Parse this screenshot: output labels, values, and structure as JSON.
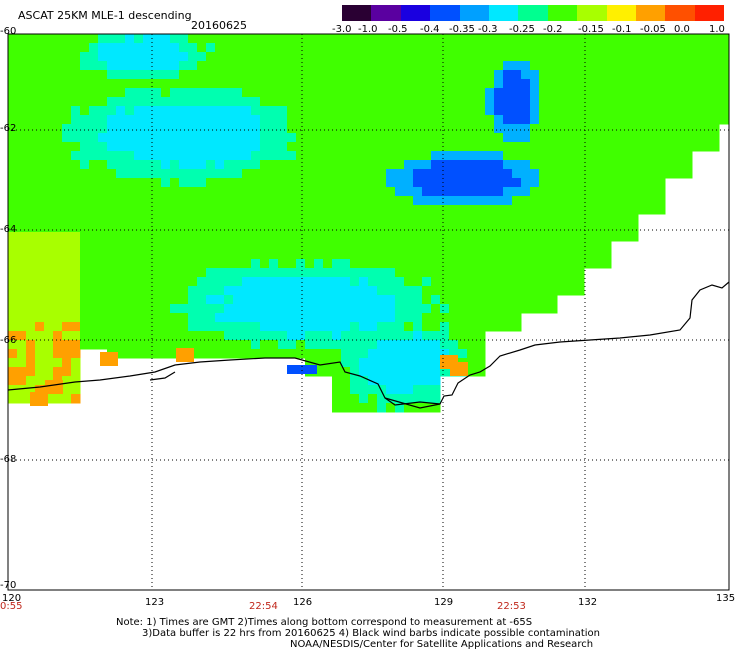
{
  "header": {
    "product": "ASCAT 25KM MLE-1 descending",
    "date": "20160625"
  },
  "colorbar": {
    "tick_labels": [
      "-3.0",
      "-1.0",
      "-0.5",
      "-0.4",
      "-0.35",
      "-0.3",
      "-0.25",
      "-0.2",
      "-0.15",
      "-0.1",
      "-0.05",
      "0.0",
      "1.0"
    ],
    "colors": [
      "#2a0033",
      "#5a00a0",
      "#1a00e0",
      "#0050ff",
      "#00a0ff",
      "#00e8ff",
      "#00ff90",
      "#40ff00",
      "#a8ff00",
      "#fff000",
      "#ffa000",
      "#ff5000",
      "#ff2000"
    ]
  },
  "axes": {
    "lat_labels": [
      "-60",
      "-62",
      "-64",
      "-66",
      "-68",
      "-70"
    ],
    "lon_labels": [
      "120",
      "123",
      "126",
      "129",
      "132",
      "135"
    ],
    "lat_values": [
      -60,
      -62,
      -64,
      -66,
      -68,
      -70
    ],
    "lon_values": [
      120,
      123,
      126,
      129,
      132,
      135
    ]
  },
  "times": [
    "0:55",
    "22:54",
    "22:53"
  ],
  "notes": {
    "line1": "Note: 1) Times are GMT 2)Times along bottom correspond to measurement at -65S",
    "line2": "3)Data buffer is 22 hrs from 20160625 4) Black wind barbs indicate possible contamination",
    "line3": "NOAA/NESDIS/Center for Satellite Applications and Research"
  },
  "map_palette": {
    "water_low": "#0050ff",
    "water_mid": "#00e8ff",
    "green": "#40ff00",
    "lime": "#a8ff00",
    "yellow": "#fff000",
    "orange": "#ffa000"
  }
}
